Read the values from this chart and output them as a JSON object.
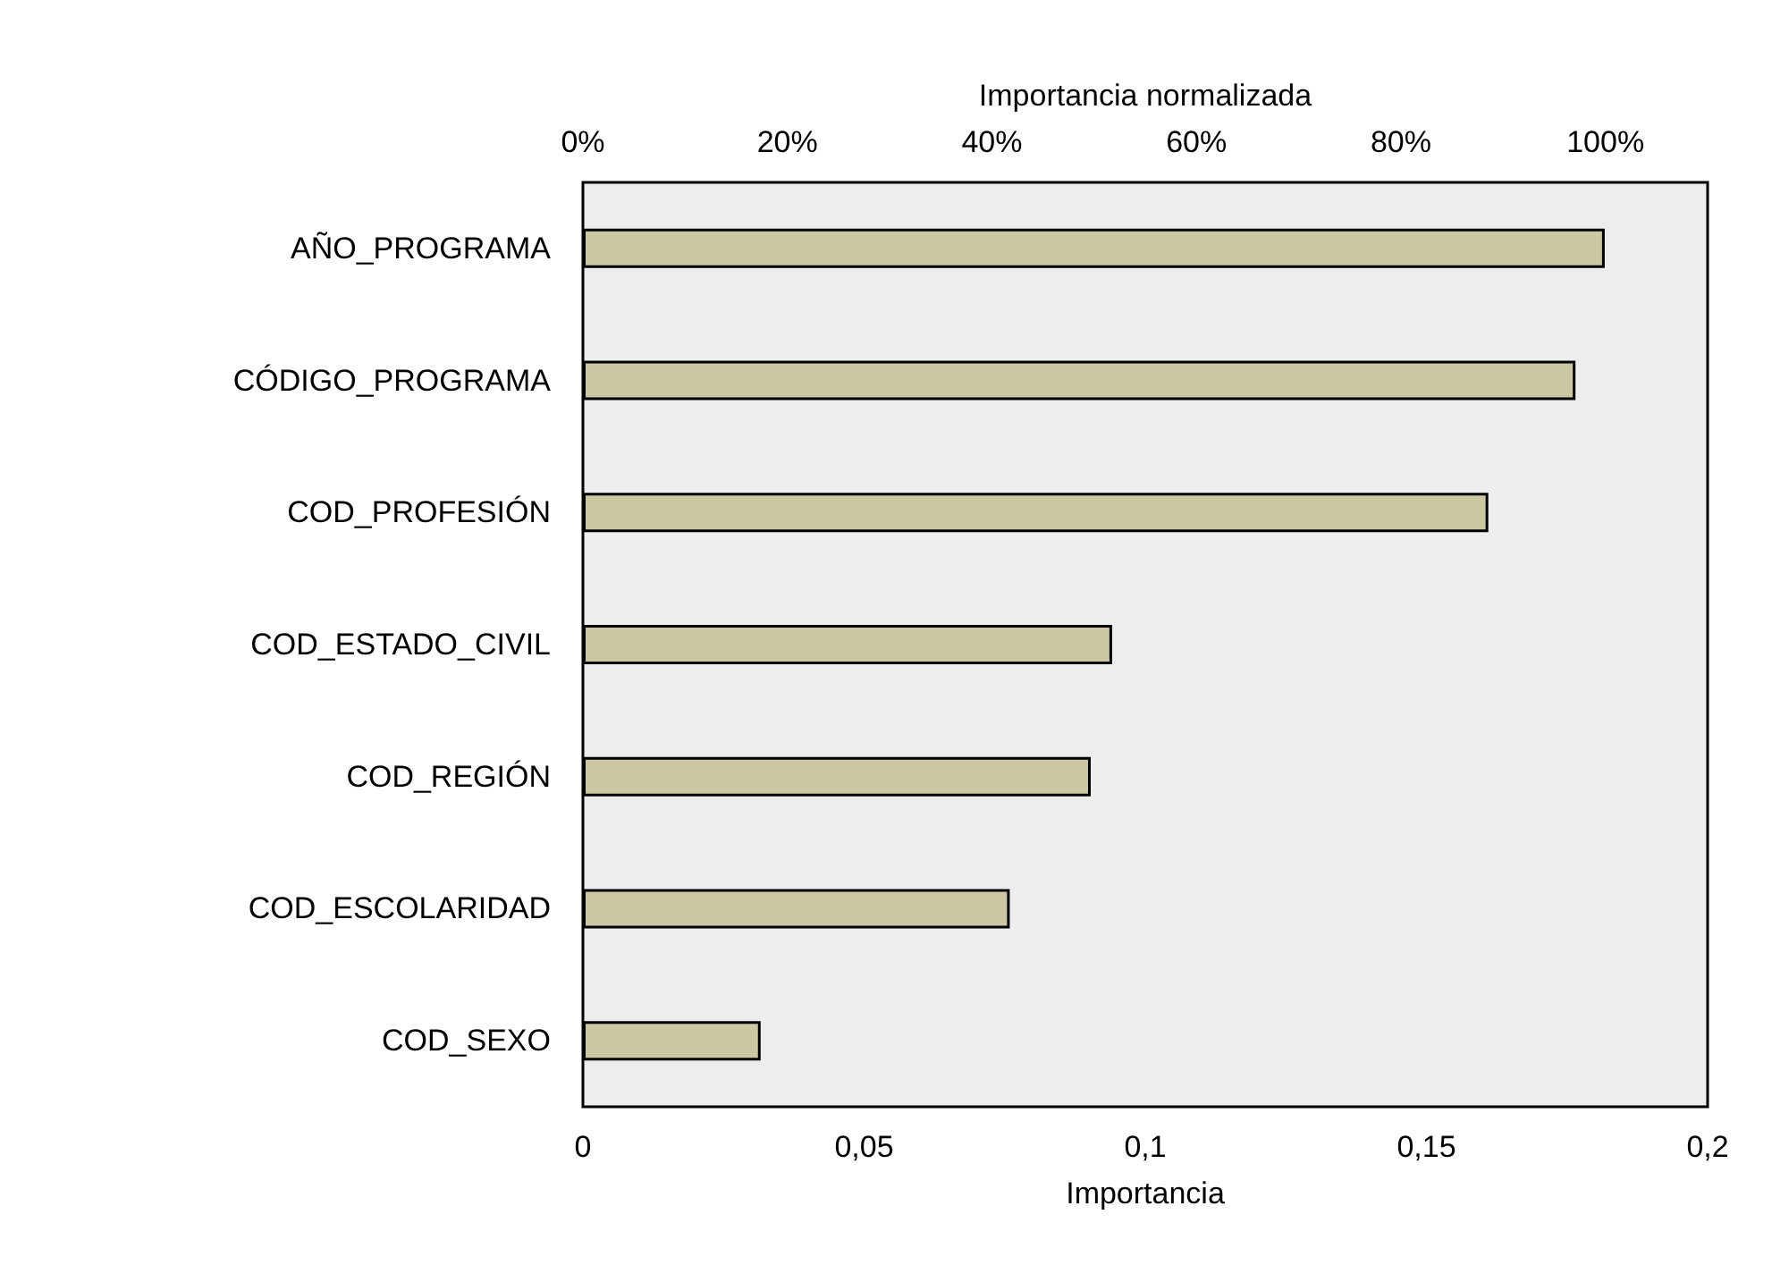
{
  "chart_data": {
    "type": "bar",
    "orientation": "horizontal",
    "xlabel": "Importancia",
    "x2label": "Importancia normalizada",
    "categories": [
      "AÑO_PROGRAMA",
      "CÓDIGO_PROGRAMA",
      "COD_PROFESIÓN",
      "COD_ESTADO_CIVIL",
      "COD_REGIÓN",
      "COD_ESCOLARIDAD",
      "COD_SEXO"
    ],
    "values": [
      0.1817,
      0.1765,
      0.161,
      0.0941,
      0.0903,
      0.0759,
      0.0316
    ],
    "color": "#cbc7a2",
    "xlim": [
      0,
      0.2
    ],
    "xticks": [
      0,
      {
        "value": 0.05,
        "label": "0,05"
      },
      {
        "value": 0.1,
        "label": "0,1"
      },
      {
        "value": 0.15,
        "label": "0,15"
      },
      {
        "value": 0.2,
        "label": "0,2"
      }
    ],
    "x2lim": [
      0,
      110
    ],
    "x2ticks": [
      {
        "value": 0,
        "label": "0%"
      },
      {
        "value": 20,
        "label": "20%"
      },
      {
        "value": 40,
        "label": "40%"
      },
      {
        "value": 60,
        "label": "60%"
      },
      {
        "value": 80,
        "label": "80%"
      },
      {
        "value": 100,
        "label": "100%"
      }
    ],
    "grid": false
  }
}
